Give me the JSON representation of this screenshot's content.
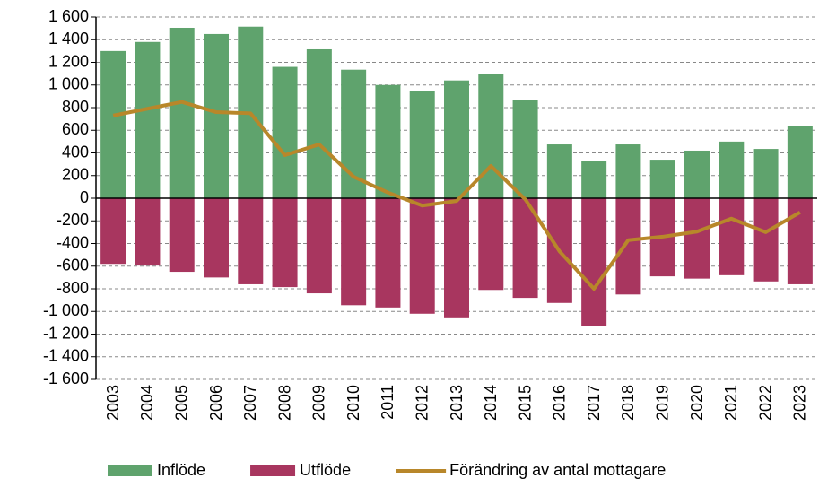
{
  "chart_data": {
    "type": "bar",
    "categories": [
      "2003",
      "2004",
      "2005",
      "2006",
      "2007",
      "2008",
      "2009",
      "2010",
      "2011",
      "2012",
      "2013",
      "2014",
      "2015",
      "2016",
      "2017",
      "2018",
      "2019",
      "2020",
      "2021",
      "2022",
      "2023"
    ],
    "series": [
      {
        "name": "Inflöde",
        "type": "bar",
        "color": "#5fa36d",
        "values": [
          1300,
          1380,
          1505,
          1450,
          1515,
          1160,
          1315,
          1135,
          1000,
          950,
          1040,
          1100,
          870,
          475,
          330,
          475,
          340,
          420,
          500,
          435,
          635
        ]
      },
      {
        "name": "Utflöde",
        "type": "bar",
        "color": "#a8365f",
        "values": [
          -580,
          -595,
          -650,
          -700,
          -760,
          -785,
          -840,
          -945,
          -965,
          -1020,
          -1060,
          -810,
          -880,
          -925,
          -1125,
          -850,
          -690,
          -710,
          -680,
          -735,
          -760
        ]
      },
      {
        "name": "Förändring av antal mottagare",
        "type": "line",
        "color": "#b8872a",
        "values": [
          730,
          790,
          850,
          760,
          750,
          380,
          475,
          190,
          50,
          -65,
          -25,
          285,
          -10,
          -470,
          -800,
          -370,
          -340,
          -295,
          -180,
          -300,
          -125
        ]
      }
    ],
    "ylim": [
      -1600,
      1600
    ],
    "yticks": [
      {
        "value": -1600,
        "label": "-1 600"
      },
      {
        "value": -1400,
        "label": "-1 400"
      },
      {
        "value": -1200,
        "label": "-1 200"
      },
      {
        "value": -1000,
        "label": "-1 000"
      },
      -800,
      -600,
      -400,
      -200,
      0,
      200,
      400,
      600,
      800,
      {
        "value": 1000,
        "label": "1 000"
      },
      {
        "value": 1200,
        "label": "1 200"
      },
      {
        "value": 1400,
        "label": "1 400"
      },
      {
        "value": 1600,
        "label": "1 600"
      }
    ],
    "grid": true,
    "legend": "bottom"
  }
}
